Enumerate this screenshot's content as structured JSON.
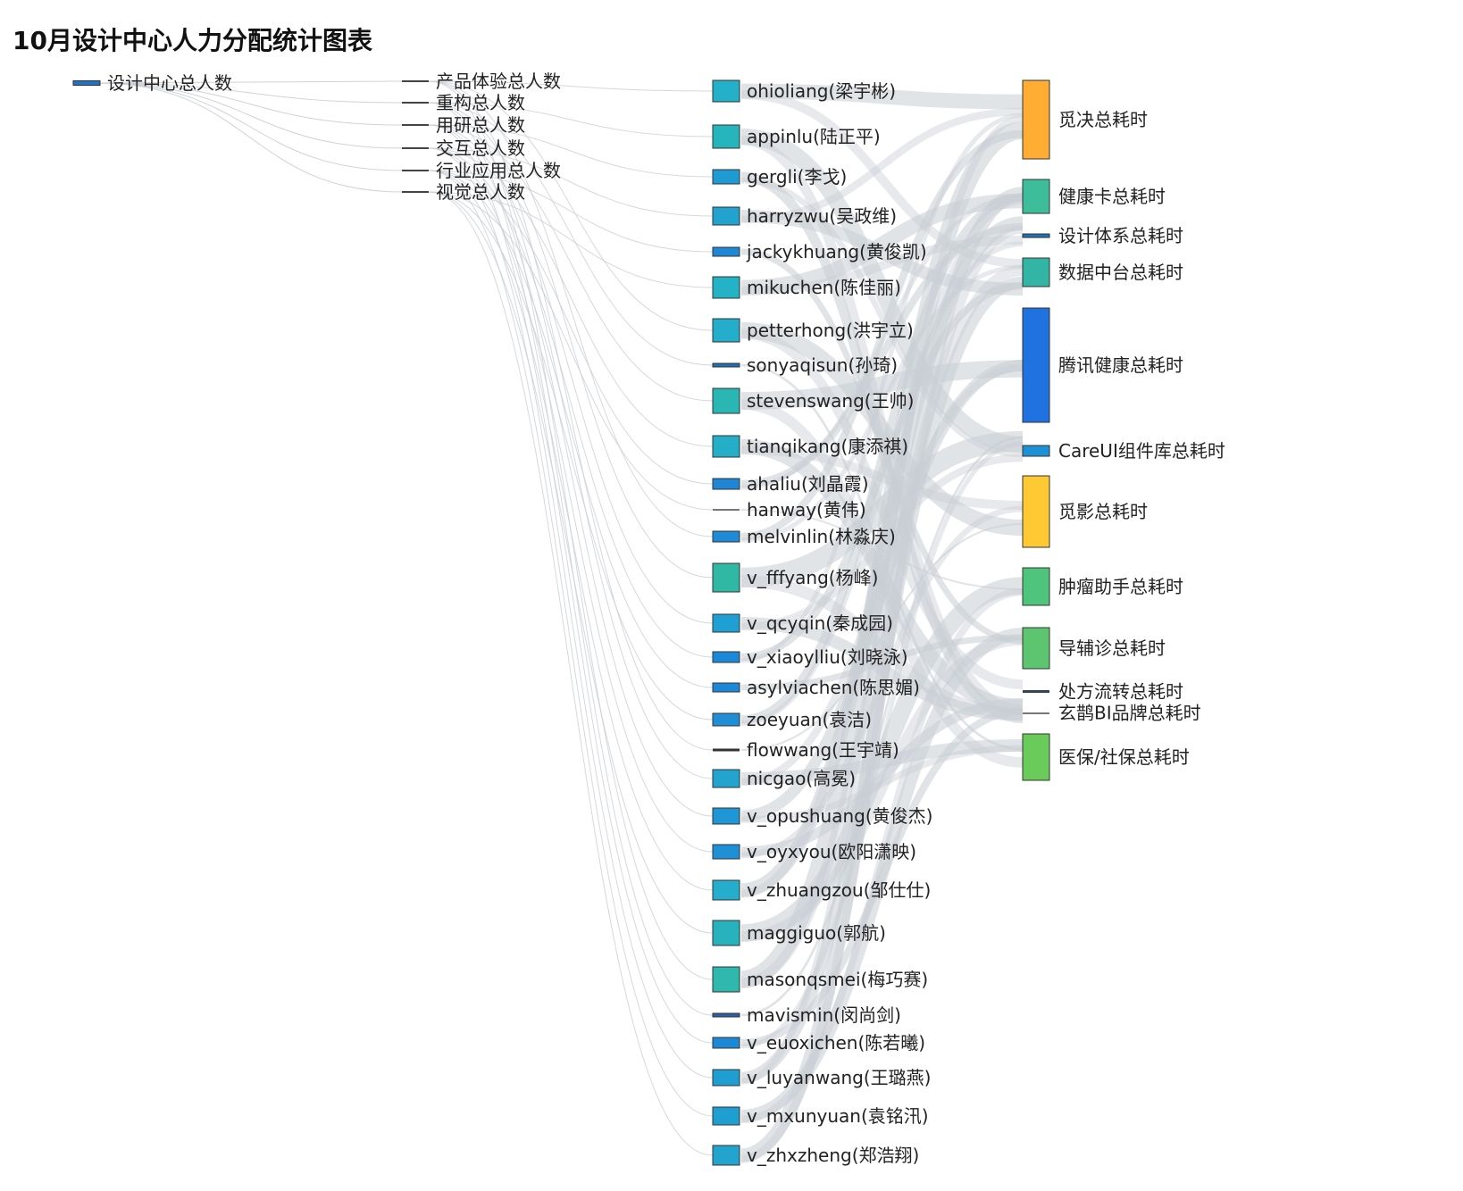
{
  "title": "10月设计中心人力分配统计图表",
  "chart_data": {
    "type": "sankey",
    "levels": [
      [
        "设计中心总人数"
      ],
      [
        "产品体验总人数",
        "重构总人数",
        "用研总人数",
        "交互总人数",
        "行业应用总人数",
        "视觉总人数"
      ],
      [
        "ohioliang(梁宇彬)",
        "appinlu(陆正平)",
        "gergli(李戈)",
        "harryzwu(吴政维)",
        "jackykhuang(黄俊凯)",
        "mikuchen(陈佳丽)",
        "petterhong(洪宇立)",
        "sonyaqisun(孙琦)",
        "stevenswang(王帅)",
        "tianqikang(康添祺)",
        "ahaliu(刘晶霞)",
        "hanway(黄伟)",
        "melvinlin(林淼庆)",
        "v_fffyang(杨峰)",
        "v_qcyqin(秦成园)",
        "v_xiaoylliu(刘晓泳)",
        "asylviachen(陈思媚)",
        "zoeyuan(袁洁)",
        "flowwang(王宇靖)",
        "nicgao(高冕)",
        "v_opushuang(黄俊杰)",
        "v_oyxyou(欧阳潇映)",
        "v_zhuangzou(邹仕仕)",
        "maggiguo(郭航)",
        "masonqsmei(梅巧赛)",
        "mavismin(闵尚剑)",
        "v_euoxichen(陈若曦)",
        "v_luyanwang(王璐燕)",
        "v_mxunyuan(袁铭汛)",
        "v_zhxzheng(郑浩翔)"
      ],
      [
        "觅决总耗时",
        "健康卡总耗时",
        "设计体系总耗时",
        "数据中台总耗时",
        "腾讯健康总耗时",
        "CareUI组件库总耗时",
        "觅影总耗时",
        "肿瘤助手总耗时",
        "导辅诊总耗时",
        "处方流转总耗时",
        "玄鹊BI品牌总耗时",
        "医保/社保总耗时"
      ]
    ],
    "node_colors": {
      "觅决总耗时": "#ffad33",
      "健康卡总耗时": "#3dbd9a",
      "设计体系总耗时": "#1f6fb5",
      "数据中台总耗时": "#33b5a6",
      "腾讯健康总耗时": "#1f72e0",
      "CareUI组件库总耗时": "#1e90d6",
      "觅影总耗时": "#ffc933",
      "肿瘤助手总耗时": "#4fc47d",
      "导辅诊总耗时": "#5dc46f",
      "处方流转总耗时": "#334455",
      "玄鹊BI品牌总耗时": "#777777",
      "医保/社保总耗时": "#6acb5a"
    },
    "link_color": "#c9ced4"
  }
}
